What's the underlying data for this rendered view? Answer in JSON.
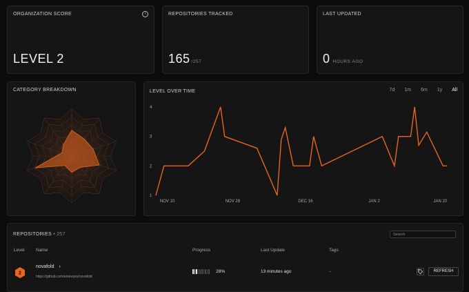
{
  "cards": {
    "org_score": {
      "title": "ORGANIZATION SCORE",
      "value": "LEVEL 2",
      "info_icon": "info-icon"
    },
    "repos_tracked": {
      "title": "REPOSITORIES TRACKED",
      "value": "165",
      "total": "/257"
    },
    "last_updated": {
      "title": "LAST UPDATED",
      "value": "0",
      "unit": "HOURS AGO"
    }
  },
  "category": {
    "title": "CATEGORY BREAKDOWN"
  },
  "level_chart": {
    "title": "LEVEL OVER TIME",
    "ranges": [
      "7d",
      "1m",
      "6m",
      "1y",
      "All"
    ],
    "active_range": "All",
    "accent": "#e8661f"
  },
  "chart_data": {
    "type": "line",
    "x_ticks": [
      "NOV 10",
      "NOV 28",
      "DEC 16",
      "JAN 2",
      "JAN 20"
    ],
    "y_ticks": [
      "1",
      "2",
      "3",
      "4"
    ],
    "ylim": [
      1,
      4
    ],
    "series": [
      {
        "points": [
          [
            "2023-11-09",
            1.0
          ],
          [
            "2023-11-11",
            2.0
          ],
          [
            "2023-11-17",
            2.0
          ],
          [
            "2023-11-21",
            2.5
          ],
          [
            "2023-11-25",
            4.0
          ],
          [
            "2023-11-26",
            3.0
          ],
          [
            "2023-12-04",
            2.6
          ],
          [
            "2023-12-09",
            1.0
          ],
          [
            "2023-12-10",
            2.9
          ],
          [
            "2023-12-11",
            3.3
          ],
          [
            "2023-12-13",
            2.0
          ],
          [
            "2023-12-17",
            2.0
          ],
          [
            "2023-12-18",
            3.0
          ],
          [
            "2023-12-20",
            2.0
          ],
          [
            "2024-01-04",
            3.0
          ],
          [
            "2024-01-07",
            2.0
          ],
          [
            "2024-01-08",
            3.0
          ],
          [
            "2024-01-11",
            3.0
          ],
          [
            "2024-01-12",
            4.0
          ],
          [
            "2024-01-13",
            2.7
          ],
          [
            "2024-01-15",
            3.15
          ],
          [
            "2024-01-19",
            2.0
          ],
          [
            "2024-01-20",
            2.0
          ]
        ]
      }
    ]
  },
  "radar": {
    "axes": 10,
    "rings": 6,
    "values": [
      0.55,
      0.45,
      0.48,
      0.62,
      0.3,
      0.35,
      0.25,
      0.82,
      0.22,
      0.3
    ]
  },
  "repositories": {
    "title": "REPOSITORIES",
    "count": "• 257",
    "search_placeholder": "Search",
    "columns": {
      "level": "Level",
      "name": "Name",
      "progress": "Progress",
      "last_update": "Last Update",
      "tags": "Tags"
    },
    "rows": [
      {
        "level": "2",
        "name": "novafold",
        "url": "https://github.com/enoreyes/novafold",
        "progress": 0.28,
        "progress_label": "28%",
        "last_update": "13 minutes ago",
        "tags": "–",
        "tag_icon": "tag-icon",
        "refresh_label": "REFRESH"
      }
    ]
  }
}
